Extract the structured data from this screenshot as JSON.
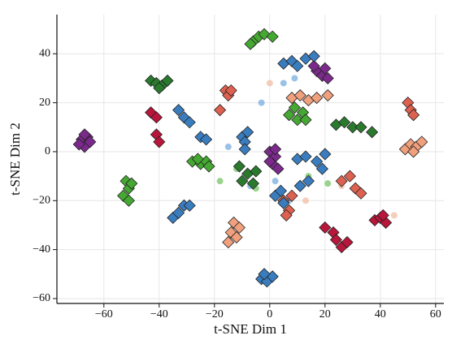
{
  "chart_data": {
    "type": "scatter",
    "xlabel": "t-SNE Dim 1",
    "ylabel": "t-SNE Dim 2",
    "xlim": [
      -77,
      63
    ],
    "ylim": [
      -62,
      56
    ],
    "xticks": [
      {
        "value": -60,
        "label": "−60"
      },
      {
        "value": -40,
        "label": "−40"
      },
      {
        "value": -20,
        "label": "−20"
      },
      0,
      20,
      40,
      60
    ],
    "yticks": [
      {
        "value": -60,
        "label": "−60"
      },
      {
        "value": -40,
        "label": "−40"
      },
      {
        "value": -20,
        "label": "−20"
      },
      0,
      20,
      40
    ],
    "grid": true,
    "series": [
      {
        "color": "#6fa8dc",
        "marker": "circle",
        "alpha": 0.7,
        "x": [
          5,
          9,
          -15,
          -7,
          2,
          7,
          -3
        ],
        "y": [
          28,
          30,
          2,
          -14,
          -12,
          -20,
          20
        ]
      },
      {
        "color": "#6cc25a",
        "marker": "circle",
        "alpha": 0.7,
        "x": [
          -12,
          21,
          -18,
          14,
          -5
        ],
        "y": [
          -7,
          -13,
          -12,
          -10,
          -15
        ]
      },
      {
        "color": "#f4b8a0",
        "marker": "circle",
        "alpha": 0.7,
        "x": [
          0,
          26,
          13,
          45
        ],
        "y": [
          28,
          -14,
          -20,
          -26
        ]
      },
      {
        "color": "#7b2a8c",
        "marker": "diamond",
        "alpha": 1,
        "x": [
          -68,
          -66,
          -67,
          -69,
          -65,
          -67,
          0,
          2,
          1,
          3,
          0,
          2,
          17,
          19,
          21,
          16,
          20
        ],
        "y": [
          5,
          6,
          2,
          3,
          4,
          7,
          0,
          -2,
          -5,
          -7,
          -4,
          1,
          33,
          31,
          30,
          35,
          34
        ]
      },
      {
        "color": "#45a832",
        "marker": "diamond",
        "alpha": 1,
        "x": [
          -6,
          -4,
          -2,
          -7,
          1,
          -52,
          -51,
          -53,
          -51,
          -50,
          -28,
          -25,
          -23,
          -22,
          -26,
          7,
          10,
          12,
          9,
          13
        ],
        "y": [
          45,
          47,
          48,
          44,
          47,
          -12,
          -15,
          -18,
          -20,
          -13,
          -4,
          -5,
          -4,
          -6,
          -3,
          15,
          13,
          16,
          18,
          13
        ]
      },
      {
        "color": "#2a7a2e",
        "marker": "diamond",
        "alpha": 1,
        "x": [
          -43,
          -41,
          -39,
          -37,
          -40,
          24,
          27,
          30,
          33,
          37,
          -10,
          -8,
          -6,
          -5,
          -11
        ],
        "y": [
          29,
          28,
          27,
          29,
          26,
          11,
          12,
          10,
          10,
          8,
          -12,
          -9,
          -13,
          -8,
          -6
        ]
      },
      {
        "color": "#b8163a",
        "marker": "diamond",
        "alpha": 1,
        "x": [
          -43,
          -41,
          -41,
          -40,
          20,
          23,
          24,
          26,
          28,
          38,
          40,
          42,
          41
        ],
        "y": [
          16,
          14,
          7,
          4,
          -31,
          -33,
          -36,
          -39,
          -37,
          -28,
          -27,
          -29,
          -26
        ]
      },
      {
        "color": "#dd6150",
        "marker": "diamond",
        "alpha": 1,
        "x": [
          -16,
          -15,
          -14,
          -18,
          50,
          51,
          52,
          5,
          7,
          6,
          8,
          26,
          29,
          31,
          33
        ],
        "y": [
          25,
          23,
          25,
          17,
          20,
          17,
          15,
          -20,
          -24,
          -26,
          -18,
          -12,
          -10,
          -15,
          -17
        ]
      },
      {
        "color": "#f0a07c",
        "marker": "diamond",
        "alpha": 1,
        "x": [
          -13,
          -14,
          -12,
          -11,
          -15,
          8,
          11,
          14,
          17,
          21,
          49,
          51,
          53,
          55,
          52
        ],
        "y": [
          -29,
          -33,
          -35,
          -31,
          -37,
          22,
          23,
          21,
          22,
          23,
          1,
          3,
          2,
          4,
          0
        ]
      },
      {
        "color": "#3a7dbf",
        "marker": "diamond",
        "alpha": 1,
        "x": [
          -31,
          -29,
          -33,
          -25,
          -23,
          -10,
          -9,
          -8,
          -9,
          -35,
          -33,
          -31,
          -29,
          -3,
          -1,
          1,
          -2,
          2,
          4,
          5,
          10,
          13,
          17,
          19,
          20,
          11,
          14,
          5,
          8,
          13,
          16,
          10
        ],
        "y": [
          14,
          12,
          17,
          6,
          5,
          6,
          4,
          8,
          1,
          -27,
          -25,
          -22,
          -22,
          -52,
          -53,
          -51,
          -50,
          -18,
          -16,
          -21,
          -3,
          -2,
          -4,
          -7,
          -1,
          -14,
          -12,
          36,
          37,
          38,
          39,
          35
        ]
      }
    ]
  }
}
